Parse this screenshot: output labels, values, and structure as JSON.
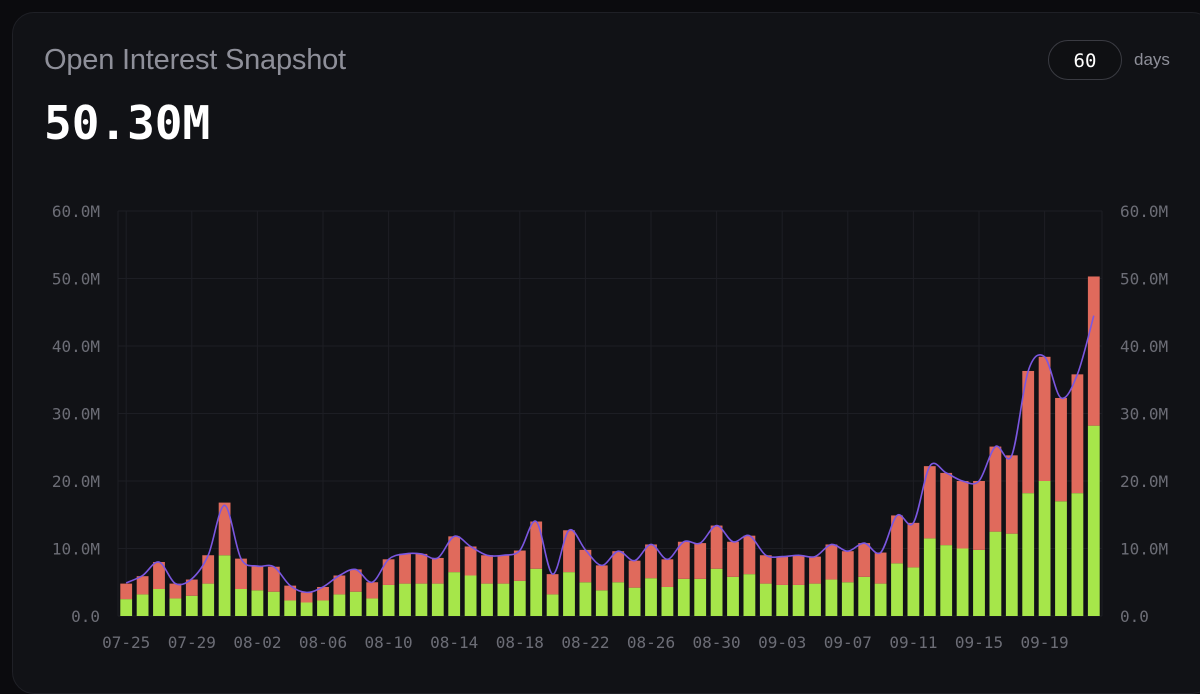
{
  "header": {
    "title": "Open Interest Snapshot",
    "value": "50.30M",
    "days_value": "60",
    "days_label": "days"
  },
  "colors": {
    "bar_bottom": "#a6e64a",
    "bar_top": "#e06a5c",
    "line": "#7b57e0",
    "grid": "#1d1e24",
    "card": "#111216"
  },
  "chart_data": {
    "type": "bar",
    "stacked": true,
    "title": "Open Interest Snapshot",
    "xlabel": "",
    "ylabel": "",
    "ylim": [
      0,
      60
    ],
    "y_unit": "M",
    "y_ticks": [
      "0.0",
      "10.0M",
      "20.0M",
      "30.0M",
      "40.0M",
      "50.0M",
      "60.0M"
    ],
    "x_tick_labels": [
      "07-25",
      "07-29",
      "08-02",
      "08-06",
      "08-10",
      "08-14",
      "08-18",
      "08-22",
      "08-26",
      "08-30",
      "09-03",
      "09-07",
      "09-11",
      "09-15",
      "09-19"
    ],
    "x_tick_every": 4,
    "grid": true,
    "categories": [
      "07-25",
      "07-26",
      "07-27",
      "07-28",
      "07-29",
      "07-30",
      "07-31",
      "08-01",
      "08-02",
      "08-03",
      "08-04",
      "08-05",
      "08-06",
      "08-07",
      "08-08",
      "08-09",
      "08-10",
      "08-11",
      "08-12",
      "08-13",
      "08-14",
      "08-15",
      "08-16",
      "08-17",
      "08-18",
      "08-19",
      "08-20",
      "08-21",
      "08-22",
      "08-23",
      "08-24",
      "08-25",
      "08-26",
      "08-27",
      "08-28",
      "08-29",
      "08-30",
      "08-31",
      "09-01",
      "09-02",
      "09-03",
      "09-04",
      "09-05",
      "09-06",
      "09-07",
      "09-08",
      "09-09",
      "09-10",
      "09-11",
      "09-12",
      "09-13",
      "09-14",
      "09-15",
      "09-16",
      "09-17",
      "09-18",
      "09-19",
      "09-20",
      "09-21",
      "09-22"
    ],
    "series": [
      {
        "values": [
          2.5,
          3.2,
          4.0,
          2.6,
          3.0,
          4.8,
          9.0,
          4.0,
          3.8,
          3.6,
          2.3,
          2.0,
          2.3,
          3.2,
          3.6,
          2.6,
          4.6,
          4.8,
          4.8,
          4.8,
          6.5,
          6.0,
          4.8,
          4.8,
          5.2,
          7.0,
          3.2,
          6.5,
          5.0,
          3.8,
          5.0,
          4.2,
          5.6,
          4.3,
          5.5,
          5.5,
          7.0,
          5.8,
          6.2,
          4.8,
          4.6,
          4.6,
          4.8,
          5.4,
          5.0,
          5.8,
          4.8,
          7.8,
          7.2,
          11.5,
          10.5,
          10.0,
          9.8,
          12.5,
          12.2,
          18.2,
          20.0,
          17.0,
          18.2,
          28.2
        ]
      },
      {
        "values": [
          2.3,
          2.7,
          4.0,
          2.2,
          2.4,
          4.2,
          7.8,
          4.5,
          3.6,
          3.7,
          2.2,
          1.5,
          2.0,
          2.8,
          3.3,
          2.4,
          3.8,
          4.4,
          4.4,
          3.8,
          5.3,
          4.3,
          4.2,
          4.2,
          4.5,
          7.0,
          3.0,
          6.2,
          4.8,
          3.7,
          4.6,
          4.0,
          5.0,
          4.1,
          5.5,
          5.3,
          6.4,
          5.2,
          5.7,
          4.2,
          4.2,
          4.4,
          4.0,
          5.2,
          4.6,
          5.0,
          4.6,
          7.1,
          6.6,
          10.7,
          10.7,
          10.0,
          10.2,
          12.6,
          11.6,
          18.1,
          18.4,
          15.3,
          17.6,
          22.1
        ]
      }
    ],
    "line": [
      4.9,
      6.0,
      8.0,
      4.8,
      5.5,
      9.0,
      16.4,
      8.5,
      7.4,
      7.3,
      4.5,
      3.5,
      4.3,
      6.0,
      6.9,
      5.0,
      8.4,
      9.2,
      9.2,
      8.6,
      11.8,
      10.3,
      9.0,
      9.0,
      9.7,
      14.0,
      6.2,
      12.7,
      9.8,
      7.5,
      9.6,
      8.2,
      10.6,
      8.4,
      11.0,
      10.8,
      13.4,
      11.0,
      11.9,
      9.0,
      8.8,
      9.0,
      8.8,
      10.6,
      9.6,
      10.8,
      9.4,
      14.9,
      13.8,
      22.2,
      21.2,
      20.0,
      20.0,
      25.1,
      23.8,
      36.3,
      38.4,
      32.3,
      35.8,
      44.5
    ]
  }
}
